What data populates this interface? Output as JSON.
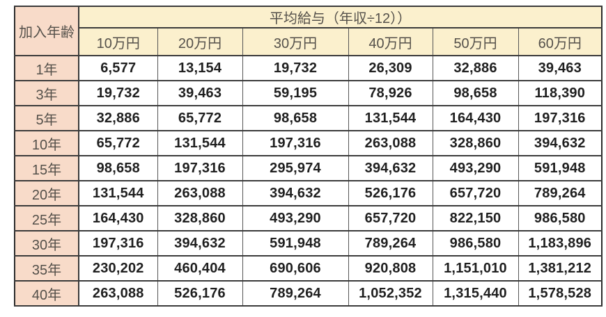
{
  "chart_data": {
    "type": "table",
    "title": "平均給与（年収÷12））",
    "corner_header": "加入年齢",
    "columns": [
      "10万円",
      "20万円",
      "30万円",
      "40万円",
      "50万円",
      "60万円"
    ],
    "rows": [
      {
        "label": "1年",
        "values": [
          "6,577",
          "13,154",
          "19,732",
          "26,309",
          "32,886",
          "39,463"
        ]
      },
      {
        "label": "3年",
        "values": [
          "19,732",
          "39,463",
          "59,195",
          "78,926",
          "98,658",
          "118,390"
        ]
      },
      {
        "label": "5年",
        "values": [
          "32,886",
          "65,772",
          "98,658",
          "131,544",
          "164,430",
          "197,316"
        ]
      },
      {
        "label": "10年",
        "values": [
          "65,772",
          "131,544",
          "197,316",
          "263,088",
          "328,860",
          "394,632"
        ]
      },
      {
        "label": "15年",
        "values": [
          "98,658",
          "197,316",
          "295,974",
          "394,632",
          "493,290",
          "591,948"
        ]
      },
      {
        "label": "20年",
        "values": [
          "131,544",
          "263,088",
          "394,632",
          "526,176",
          "657,720",
          "789,264"
        ]
      },
      {
        "label": "25年",
        "values": [
          "164,430",
          "328,860",
          "493,290",
          "657,720",
          "822,150",
          "986,580"
        ]
      },
      {
        "label": "30年",
        "values": [
          "197,316",
          "394,632",
          "591,948",
          "789,264",
          "986,580",
          "1,183,896"
        ]
      },
      {
        "label": "35年",
        "values": [
          "230,202",
          "460,404",
          "690,606",
          "920,808",
          "1,151,010",
          "1,381,212"
        ]
      },
      {
        "label": "40年",
        "values": [
          "263,088",
          "526,176",
          "789,264",
          "1,052,352",
          "1,315,440",
          "1,578,528"
        ]
      }
    ]
  },
  "colors": {
    "row_header_bg": "#f8dbc9",
    "column_header_bg": "#fbf0cd",
    "grid_line": "#3a3a3a",
    "outer_border": "#2b2b2b",
    "vline": "#555555",
    "header_text": "#54504a",
    "value_text": "#1f1f1f"
  }
}
